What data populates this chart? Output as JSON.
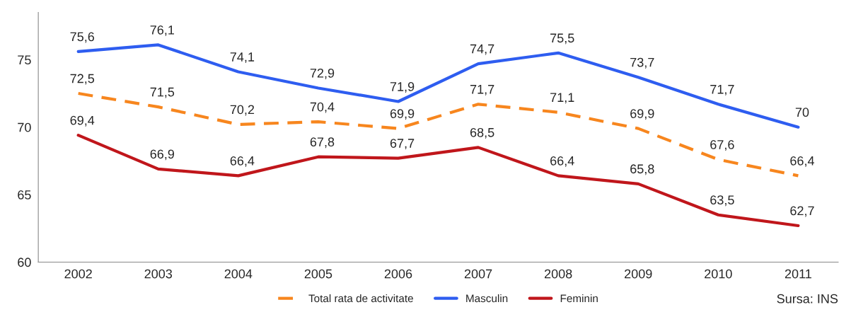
{
  "chart_data": {
    "type": "line",
    "categories": [
      "2002",
      "2003",
      "2004",
      "2005",
      "2006",
      "2007",
      "2008",
      "2009",
      "2010",
      "2011"
    ],
    "series": [
      {
        "name": "Total rata de activitate",
        "color": "#f7861e",
        "line_style": "dashed",
        "values": [
          72.5,
          71.5,
          70.2,
          70.4,
          69.9,
          71.7,
          71.1,
          69.9,
          67.6,
          66.4
        ],
        "value_labels": [
          "72,5",
          "71,5",
          "70,2",
          "70,4",
          "69,9",
          "71,7",
          "71,1",
          "69,9",
          "67,6",
          "66,4"
        ]
      },
      {
        "name": "Masculin",
        "color": "#2e5df0",
        "line_style": "solid",
        "values": [
          75.6,
          76.1,
          74.1,
          72.9,
          71.9,
          74.7,
          75.5,
          73.7,
          71.7,
          70
        ],
        "value_labels": [
          "75,6",
          "76,1",
          "74,1",
          "72,9",
          "71,9",
          "74,7",
          "75,5",
          "73,7",
          "71,7",
          "70"
        ]
      },
      {
        "name": "Feminin",
        "color": "#c0161b",
        "line_style": "solid",
        "values": [
          69.4,
          66.9,
          66.4,
          67.8,
          67.7,
          68.5,
          66.4,
          65.8,
          63.5,
          62.7
        ],
        "value_labels": [
          "69,4",
          "66,9",
          "66,4",
          "67,8",
          "67,7",
          "68,5",
          "66,4",
          "65,8",
          "63,5",
          "62,7"
        ]
      }
    ],
    "ylim": [
      60,
      78.5
    ],
    "yticks": [
      60,
      65,
      70,
      75
    ],
    "grid": false,
    "legend": "bottom",
    "marker": "none",
    "annotations": [
      "Sursa: INS"
    ]
  }
}
